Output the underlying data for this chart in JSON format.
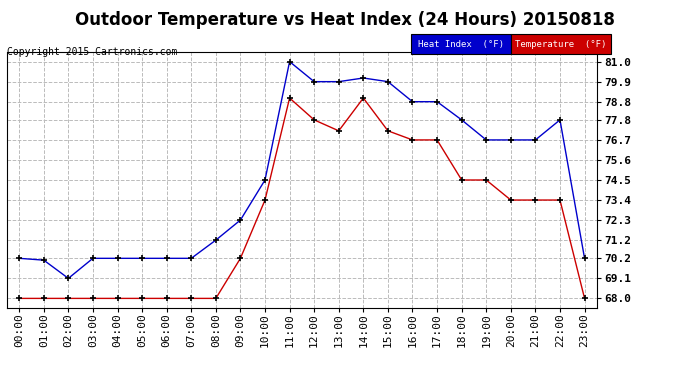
{
  "title": "Outdoor Temperature vs Heat Index (24 Hours) 20150818",
  "copyright": "Copyright 2015 Cartronics.com",
  "hours": [
    "00:00",
    "01:00",
    "02:00",
    "03:00",
    "04:00",
    "05:00",
    "06:00",
    "07:00",
    "08:00",
    "09:00",
    "10:00",
    "11:00",
    "12:00",
    "13:00",
    "14:00",
    "15:00",
    "16:00",
    "17:00",
    "18:00",
    "19:00",
    "20:00",
    "21:00",
    "22:00",
    "23:00"
  ],
  "heat_index": [
    70.2,
    70.1,
    69.1,
    70.2,
    70.2,
    70.2,
    70.2,
    70.2,
    71.2,
    72.3,
    74.5,
    81.0,
    79.9,
    79.9,
    80.1,
    79.9,
    78.8,
    78.8,
    77.8,
    76.7,
    76.7,
    76.7,
    77.8,
    70.2
  ],
  "temperature": [
    68.0,
    68.0,
    68.0,
    68.0,
    68.0,
    68.0,
    68.0,
    68.0,
    68.0,
    70.2,
    73.4,
    79.0,
    77.8,
    77.2,
    79.0,
    77.2,
    76.7,
    76.7,
    74.5,
    74.5,
    73.4,
    73.4,
    73.4,
    68.0
  ],
  "heat_index_color": "#0000cc",
  "temperature_color": "#cc0000",
  "ylim_min": 67.5,
  "ylim_max": 81.5,
  "yticks": [
    68.0,
    69.1,
    70.2,
    71.2,
    72.3,
    73.4,
    74.5,
    75.6,
    76.7,
    77.8,
    78.8,
    79.9,
    81.0
  ],
  "bg_color": "#ffffff",
  "grid_color": "#bbbbbb",
  "title_fontsize": 12,
  "copyright_fontsize": 7,
  "tick_fontsize": 8,
  "legend_hi_label": "Heat Index  (°F)",
  "legend_temp_label": "Temperature  (°F)"
}
